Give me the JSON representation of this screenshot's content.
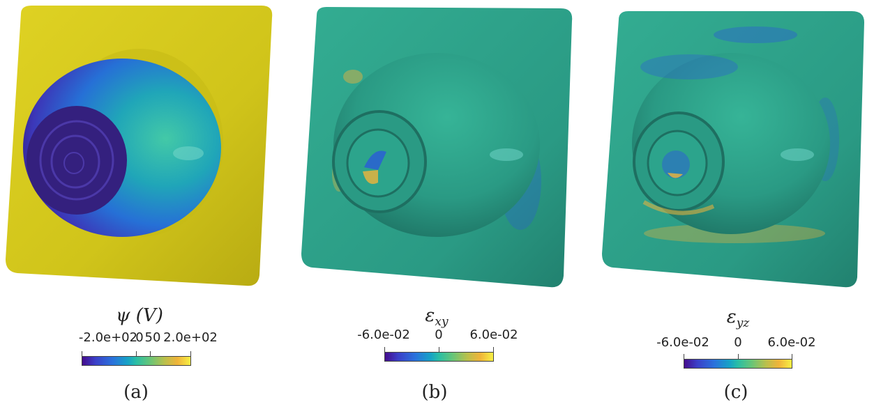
{
  "panels": [
    {
      "id": "a",
      "colorbar_title": "ψ (V)",
      "ticks": [
        "-2.0e+02",
        "0",
        "50",
        "2.0e+02"
      ],
      "sub_label": "(a)",
      "colors": {
        "plate": "#d2c51a",
        "dome_top": "#2bbea5",
        "dome_mid": "#2a72dc",
        "dome_low": "#3c2f9f",
        "dimple": "#34207e"
      }
    },
    {
      "id": "b",
      "colorbar_title": "ε",
      "colorbar_sub": "xy",
      "ticks": [
        "-6.0e-02",
        "0",
        "6.0e-02"
      ],
      "sub_label": "(b)",
      "colors": {
        "plate": "#2a9e86",
        "dome": "#2ca48c",
        "shadow": "#1f7565",
        "hot": "#f0b43a",
        "cold": "#2b5bd8"
      }
    },
    {
      "id": "c",
      "colorbar_title": "ε",
      "colorbar_sub": "yz",
      "ticks": [
        "-6.0e-02",
        "0",
        "6.0e-02"
      ],
      "sub_label": "(c)",
      "colors": {
        "plate": "#2a9e86",
        "dome": "#2ca48c",
        "shadow": "#1f7565",
        "hot": "#f0b43a",
        "cold": "#2b5bd8"
      }
    }
  ]
}
